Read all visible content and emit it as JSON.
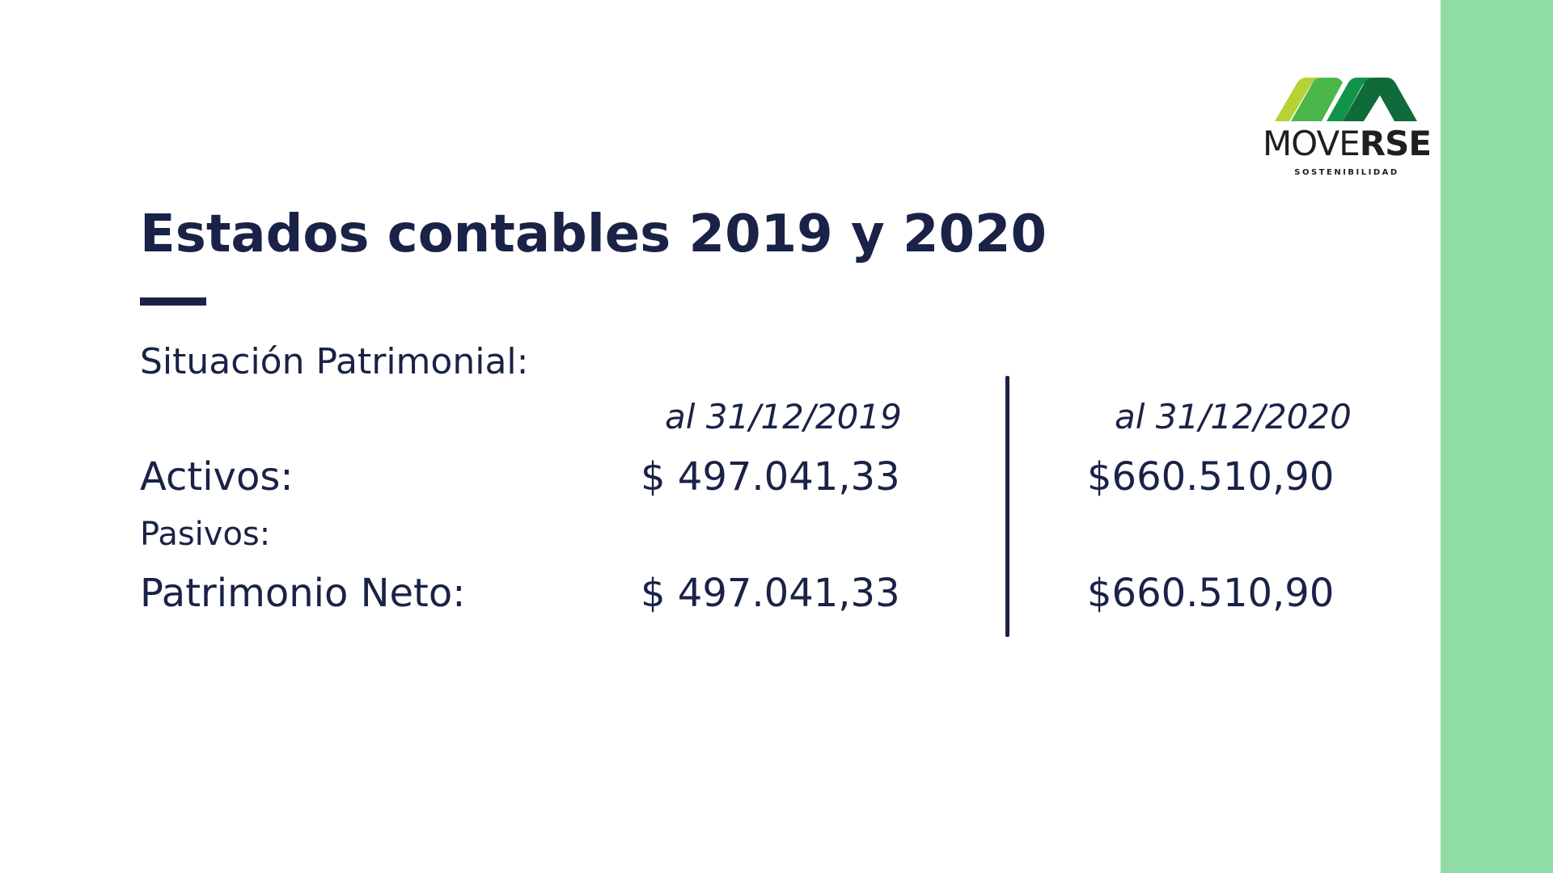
{
  "colors": {
    "text_navy": "#1a2247",
    "accent_band": "#8fdca4",
    "logo_lime": "#b6d234",
    "logo_green": "#4bb64a",
    "logo_mid_green": "#119448",
    "logo_dark_green": "#0f6b3a"
  },
  "logo": {
    "word_light": "MOVE",
    "word_bold": "RSE",
    "tagline": "SOSTENIBILIDAD"
  },
  "title": "Estados contables 2019 y 2020",
  "section_label": "Situación Patrimonial:",
  "columns": {
    "col1": "al 31/12/2019",
    "col2": "al 31/12/2020"
  },
  "rows": {
    "activos": {
      "label": "Activos:",
      "v2019": "$ 497.041,33",
      "v2020": "$660.510,90"
    },
    "pasivos": {
      "label": "Pasivos:"
    },
    "patrimonio_neto": {
      "label": "Patrimonio Neto:",
      "v2019": "$ 497.041,33",
      "v2020": "$660.510,90"
    }
  }
}
